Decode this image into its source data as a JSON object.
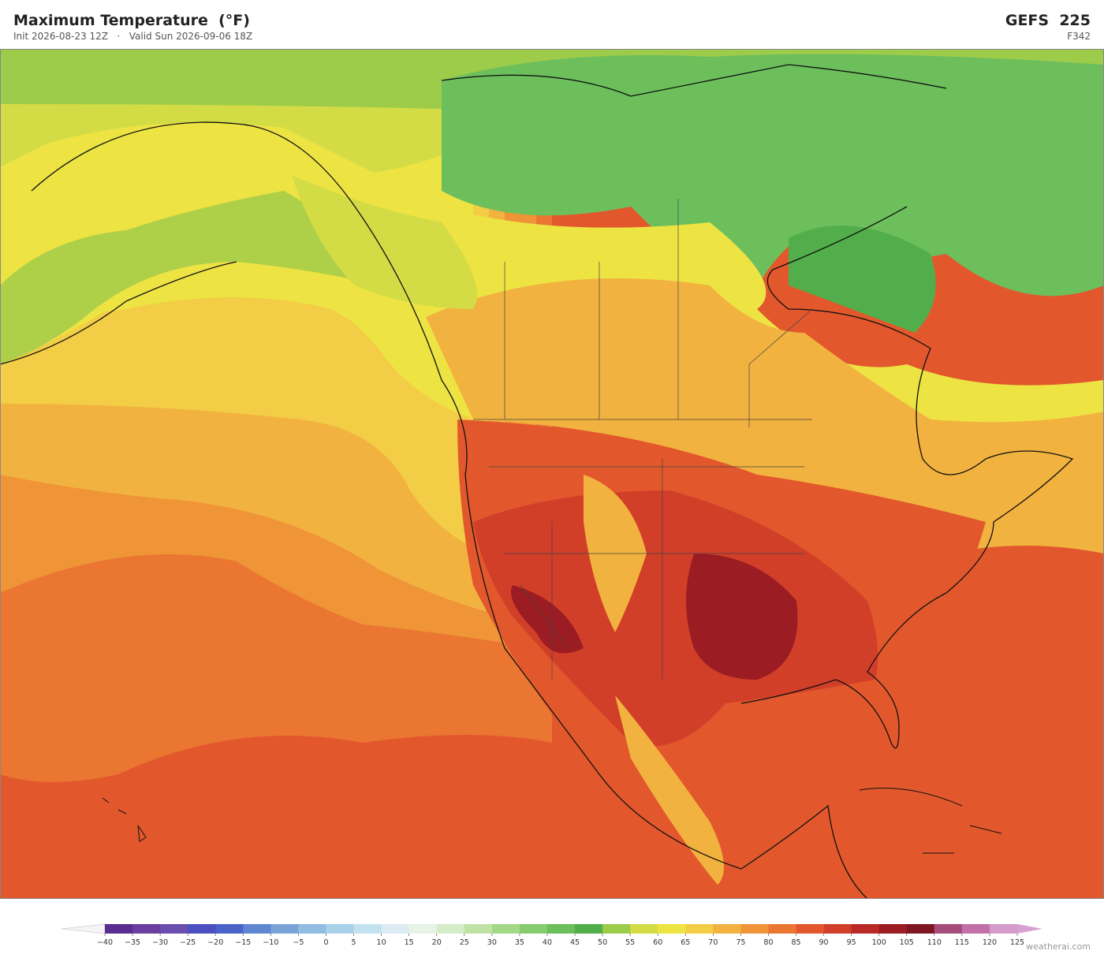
{
  "header": {
    "title": "Maximum Temperature  (°F)",
    "subtitle": "Init 2026-08-23 12Z   ·   Valid Sun 2026-09-06 18Z",
    "model": "GEFS  225",
    "forecast_hour": "F342"
  },
  "colorbar": {
    "ticks": [
      {
        "value": -40,
        "label": "−40"
      },
      {
        "value": -35,
        "label": "−35"
      },
      {
        "value": -30,
        "label": "−30"
      },
      {
        "value": -25,
        "label": "−25"
      },
      {
        "value": -20,
        "label": "−20"
      },
      {
        "value": -15,
        "label": "−15"
      },
      {
        "value": -10,
        "label": "−10"
      },
      {
        "value": -5,
        "label": "−5"
      },
      0,
      5,
      10,
      15,
      20,
      25,
      30,
      35,
      40,
      45,
      50,
      55,
      60,
      65,
      70,
      75,
      80,
      85,
      90,
      95,
      100,
      105,
      110,
      115,
      120,
      125
    ],
    "colors": [
      "#5a2d91",
      "#6b3fa0",
      "#6a4fb0",
      "#4b4fbf",
      "#4a63c8",
      "#5f86d0",
      "#7aa3d8",
      "#92bde3",
      "#a9d2ea",
      "#c3e2ef",
      "#dcecf2",
      "#e6f3e6",
      "#d4ecc8",
      "#bfe3a5",
      "#a2d987",
      "#87cc6e",
      "#6dbf5c",
      "#52ae4a",
      "#9dcb4a",
      "#d4dc45",
      "#ede343",
      "#f3cd45",
      "#f2b23f",
      "#ef9437",
      "#ea7632",
      "#e2582c",
      "#d23f29",
      "#b92a26",
      "#9b1c22",
      "#7d1620",
      "#a64c7b",
      "#c170a8",
      "#d59bcb"
    ],
    "under_color": "#f4f4f4",
    "over_color": "#d8a0d0"
  },
  "watermark": "weatherai.com"
}
